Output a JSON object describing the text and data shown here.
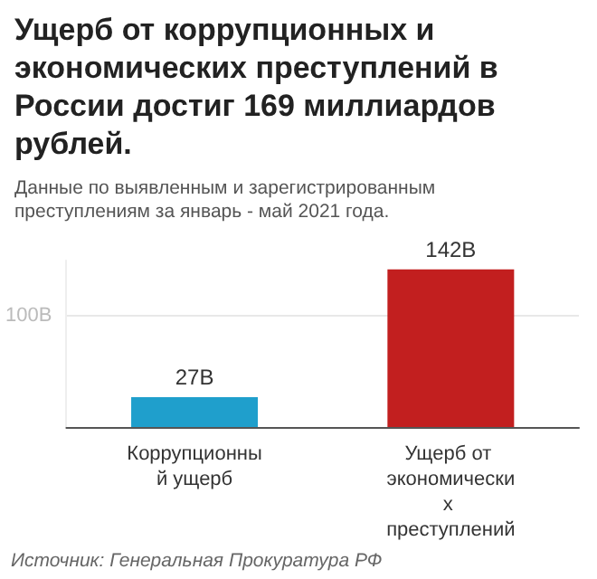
{
  "chart_data": {
    "type": "bar",
    "title": "Ущерб от коррупционных и экономических преступлений в России достиг 169 миллиардов рублей.",
    "subtitle": "Данные по выявленным и зарегистрированным преступлениям за январь - май 2021 года.",
    "categories": [
      "Коррупционный ущерб",
      "Ущерб от экономических преступлений"
    ],
    "values": [
      27,
      142
    ],
    "colors": [
      "#1f9fcc",
      "#c21f1f"
    ],
    "value_labels": [
      "27B",
      "142B"
    ],
    "ylim": [
      0,
      150
    ],
    "yticks": [
      {
        "value": 100,
        "label": "100B"
      }
    ],
    "grid": "y",
    "annotations": [
      "Источник: Генеральная Прокуратура РФ"
    ]
  }
}
